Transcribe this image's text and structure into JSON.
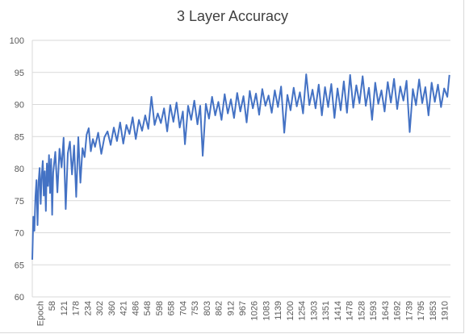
{
  "chart_data": {
    "type": "line",
    "title": "3 Layer Accuracy",
    "xlabel": "",
    "ylabel": "",
    "ylim": [
      60,
      100
    ],
    "y_ticks": [
      "60",
      "65",
      "70",
      "75",
      "80",
      "85",
      "90",
      "95",
      "100"
    ],
    "x_tick_labels": [
      "Epoch",
      "58",
      "121",
      "178",
      "234",
      "302",
      "360",
      "421",
      "486",
      "548",
      "598",
      "658",
      "704",
      "753",
      "803",
      "862",
      "912",
      "967",
      "1026",
      "1083",
      "1139",
      "1200",
      "1254",
      "1303",
      "1351",
      "1414",
      "1478",
      "1528",
      "1593",
      "1643",
      "1692",
      "1739",
      "1795",
      "1853",
      "1910"
    ],
    "grid": true,
    "legend": "none",
    "line_color": "#4472c4",
    "x_range": [
      0,
      2000
    ],
    "series": [
      {
        "points": [
          [
            0,
            65.8
          ],
          [
            5,
            72.5
          ],
          [
            10,
            70.3
          ],
          [
            15,
            75.6
          ],
          [
            20,
            78.2
          ],
          [
            25,
            71.2
          ],
          [
            30,
            77.9
          ],
          [
            35,
            80.1
          ],
          [
            40,
            74.5
          ],
          [
            45,
            78.9
          ],
          [
            50,
            81.2
          ],
          [
            55,
            75.8
          ],
          [
            60,
            79.6
          ],
          [
            65,
            73.4
          ],
          [
            70,
            80.8
          ],
          [
            75,
            77.3
          ],
          [
            80,
            82.1
          ],
          [
            85,
            76.2
          ],
          [
            90,
            81.5
          ],
          [
            95,
            72.8
          ],
          [
            100,
            79.4
          ],
          [
            110,
            82.6
          ],
          [
            120,
            76.3
          ],
          [
            130,
            83.1
          ],
          [
            140,
            80.2
          ],
          [
            150,
            84.8
          ],
          [
            160,
            73.7
          ],
          [
            170,
            82.4
          ],
          [
            180,
            84.2
          ],
          [
            190,
            79.1
          ],
          [
            200,
            83.6
          ],
          [
            210,
            75.6
          ],
          [
            220,
            84.9
          ],
          [
            230,
            77.8
          ],
          [
            240,
            83.2
          ],
          [
            250,
            81.8
          ],
          [
            260,
            85.3
          ],
          [
            270,
            86.3
          ],
          [
            280,
            82.7
          ],
          [
            290,
            84.6
          ],
          [
            300,
            83.4
          ],
          [
            315,
            85.6
          ],
          [
            330,
            82.3
          ],
          [
            345,
            84.9
          ],
          [
            360,
            85.8
          ],
          [
            375,
            83.7
          ],
          [
            390,
            86.4
          ],
          [
            405,
            84.3
          ],
          [
            420,
            87.2
          ],
          [
            435,
            83.9
          ],
          [
            450,
            86.8
          ],
          [
            465,
            85.4
          ],
          [
            480,
            88.0
          ],
          [
            495,
            84.6
          ],
          [
            510,
            87.6
          ],
          [
            525,
            85.9
          ],
          [
            540,
            88.3
          ],
          [
            555,
            86.2
          ],
          [
            570,
            91.2
          ],
          [
            585,
            86.8
          ],
          [
            600,
            88.6
          ],
          [
            615,
            87.1
          ],
          [
            630,
            89.4
          ],
          [
            645,
            85.8
          ],
          [
            660,
            89.9
          ],
          [
            675,
            87.3
          ],
          [
            690,
            90.3
          ],
          [
            705,
            86.4
          ],
          [
            720,
            88.9
          ],
          [
            730,
            83.8
          ],
          [
            745,
            89.8
          ],
          [
            760,
            87.6
          ],
          [
            775,
            90.6
          ],
          [
            790,
            86.9
          ],
          [
            803,
            89.8
          ],
          [
            815,
            82.0
          ],
          [
            830,
            90.1
          ],
          [
            845,
            87.8
          ],
          [
            860,
            91.2
          ],
          [
            875,
            88.3
          ],
          [
            890,
            90.4
          ],
          [
            905,
            87.6
          ],
          [
            920,
            91.6
          ],
          [
            935,
            88.6
          ],
          [
            950,
            90.8
          ],
          [
            965,
            87.9
          ],
          [
            980,
            91.8
          ],
          [
            995,
            88.9
          ],
          [
            1010,
            91.3
          ],
          [
            1025,
            87.2
          ],
          [
            1040,
            92.1
          ],
          [
            1055,
            89.4
          ],
          [
            1070,
            91.7
          ],
          [
            1085,
            88.4
          ],
          [
            1100,
            92.4
          ],
          [
            1115,
            89.8
          ],
          [
            1130,
            91.4
          ],
          [
            1145,
            88.7
          ],
          [
            1160,
            92.2
          ],
          [
            1175,
            89.6
          ],
          [
            1190,
            92.8
          ],
          [
            1205,
            85.6
          ],
          [
            1220,
            91.5
          ],
          [
            1235,
            89.1
          ],
          [
            1250,
            92.6
          ],
          [
            1265,
            89.7
          ],
          [
            1280,
            91.9
          ],
          [
            1295,
            88.6
          ],
          [
            1310,
            94.7
          ],
          [
            1325,
            89.9
          ],
          [
            1340,
            92.3
          ],
          [
            1355,
            89.4
          ],
          [
            1370,
            93.1
          ],
          [
            1385,
            88.3
          ],
          [
            1400,
            92.7
          ],
          [
            1415,
            89.6
          ],
          [
            1430,
            93.2
          ],
          [
            1445,
            87.9
          ],
          [
            1460,
            92.5
          ],
          [
            1475,
            89.1
          ],
          [
            1490,
            93.6
          ],
          [
            1505,
            88.7
          ],
          [
            1520,
            94.6
          ],
          [
            1535,
            89.5
          ],
          [
            1550,
            93.0
          ],
          [
            1565,
            90.2
          ],
          [
            1580,
            94.4
          ],
          [
            1595,
            89.8
          ],
          [
            1610,
            92.6
          ],
          [
            1625,
            87.6
          ],
          [
            1640,
            93.4
          ],
          [
            1655,
            90.1
          ],
          [
            1670,
            92.2
          ],
          [
            1685,
            88.9
          ],
          [
            1700,
            93.5
          ],
          [
            1715,
            90.3
          ],
          [
            1730,
            94.0
          ],
          [
            1745,
            89.3
          ],
          [
            1760,
            92.8
          ],
          [
            1775,
            90.6
          ],
          [
            1790,
            93.7
          ],
          [
            1805,
            85.7
          ],
          [
            1820,
            92.4
          ],
          [
            1835,
            89.9
          ],
          [
            1850,
            93.9
          ],
          [
            1865,
            90.2
          ],
          [
            1880,
            92.7
          ],
          [
            1895,
            88.3
          ],
          [
            1910,
            93.4
          ],
          [
            1925,
            90.4
          ],
          [
            1940,
            93.1
          ],
          [
            1955,
            89.6
          ],
          [
            1970,
            92.5
          ],
          [
            1985,
            91.2
          ],
          [
            1995,
            94.6
          ]
        ]
      }
    ]
  }
}
